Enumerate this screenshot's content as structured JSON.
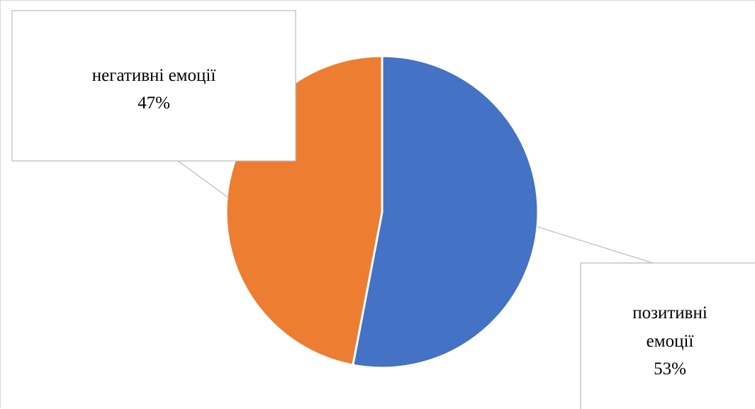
{
  "chart_data": {
    "type": "pie",
    "title": "",
    "slices": [
      {
        "label_lines": [
          "позитивні",
          "емоції"
        ],
        "percent_text": "53%",
        "value": 53,
        "color": "#4472c4"
      },
      {
        "label_lines": [
          "негативні емоції"
        ],
        "percent_text": "47%",
        "value": 47,
        "color": "#ed7d31"
      }
    ],
    "legend": "none",
    "callout_style": "boxed data callouts with leader lines"
  }
}
